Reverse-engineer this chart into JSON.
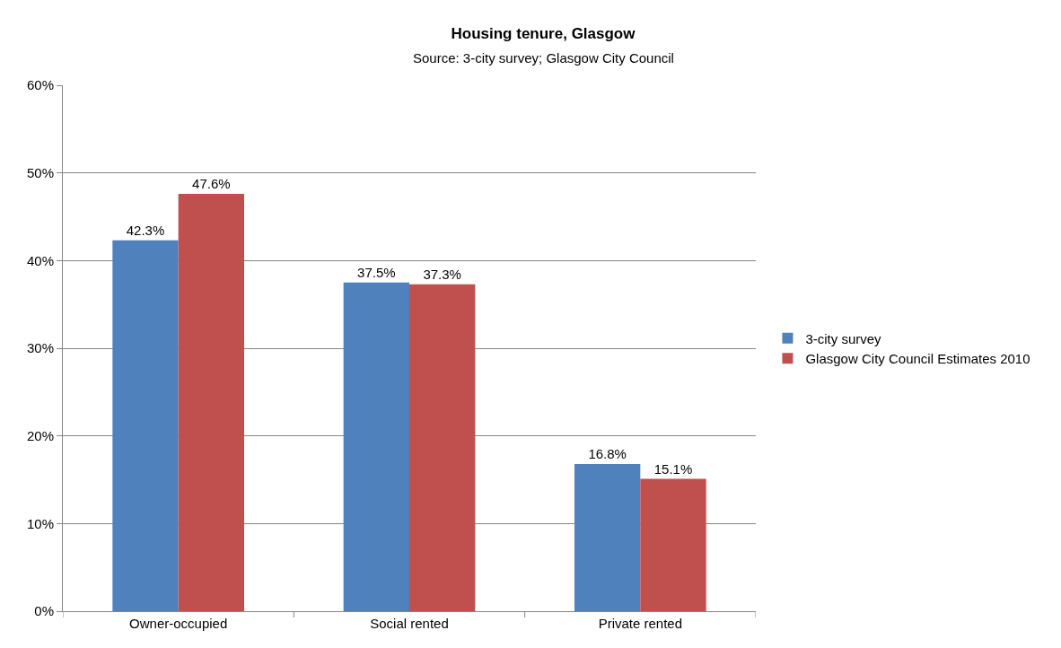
{
  "chart_data": {
    "type": "bar",
    "title": "Housing tenure, Glasgow",
    "subtitle": "Source: 3-city survey; Glasgow City Council",
    "categories": [
      "Owner-occupied",
      "Social rented",
      "Private rented"
    ],
    "series": [
      {
        "name": "3-city survey",
        "color": "#4f81bd",
        "values": [
          42.3,
          37.5,
          16.8
        ],
        "value_labels": [
          "42.3%",
          "37.5%",
          "16.8%"
        ]
      },
      {
        "name": "Glasgow City Council Estimates 2010",
        "color": "#c0504d",
        "values": [
          47.6,
          37.3,
          15.1
        ],
        "value_labels": [
          "47.6%",
          "37.3%",
          "15.1%"
        ]
      }
    ],
    "ylim": [
      0,
      60
    ],
    "yticks": [
      {
        "value": 0,
        "label": "0%"
      },
      {
        "value": 10,
        "label": "10%"
      },
      {
        "value": 20,
        "label": "20%"
      },
      {
        "value": 30,
        "label": "30%"
      },
      {
        "value": 40,
        "label": "40%"
      },
      {
        "value": 50,
        "label": "50%"
      },
      {
        "value": 60,
        "label": "60%"
      }
    ],
    "grid": "y",
    "legend": "right"
  }
}
